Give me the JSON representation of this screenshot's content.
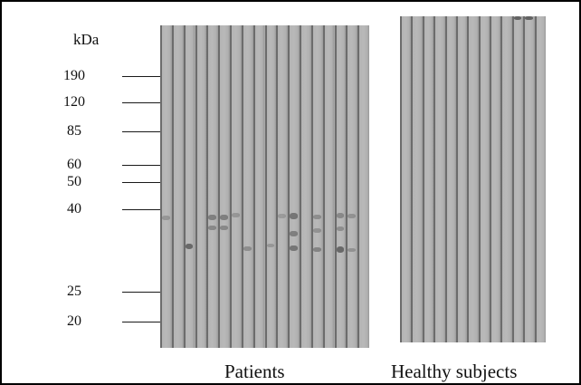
{
  "figure": {
    "unit_label": "kDa",
    "markers": [
      {
        "label": "190"
      },
      {
        "label": "120"
      },
      {
        "label": "85"
      },
      {
        "label": "60"
      },
      {
        "label": "50"
      },
      {
        "label": "40"
      },
      {
        "label": "25"
      },
      {
        "label": "20"
      }
    ],
    "panels": [
      {
        "caption": "Patients",
        "lane_count": 18
      },
      {
        "caption": "Healthy subjects",
        "lane_count": 13
      }
    ],
    "colors": {
      "membrane": "#b4b4b4",
      "lane_separator": "#6c6c6c",
      "band": "#5a5a5a",
      "frame": "#000000"
    }
  }
}
